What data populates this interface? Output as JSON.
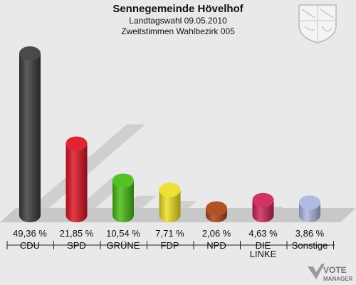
{
  "header": {
    "title": "Sennegemeinde Hövelhof",
    "subtitle": "Landtagswahl 09.05.2010",
    "subtitle2": "Zweitstimmen Wahlbezirk 005"
  },
  "chart_data": {
    "type": "bar",
    "title": "Sennegemeinde Hövelhof",
    "categories": [
      "CDU",
      "SPD",
      "GRÜNE",
      "FDP",
      "NPD",
      "DIE LINKE",
      "Sonstige"
    ],
    "values": [
      49.36,
      21.85,
      10.54,
      7.71,
      2.06,
      4.63,
      3.86
    ],
    "value_labels": [
      "49,36 %",
      "21,85 %",
      "10,54 %",
      "7,71 %",
      "2,06 %",
      "4,63 %",
      "3,86 %"
    ],
    "colors": [
      "#3a3a3a",
      "#dd1122",
      "#44bb11",
      "#eedd22",
      "#aa4411",
      "#cc2255",
      "#aab4dd"
    ],
    "ylim": [
      0,
      50
    ],
    "grid": false,
    "legend": "none"
  },
  "watermark": {
    "line1": "VOTE",
    "line2": "MANAGER"
  }
}
